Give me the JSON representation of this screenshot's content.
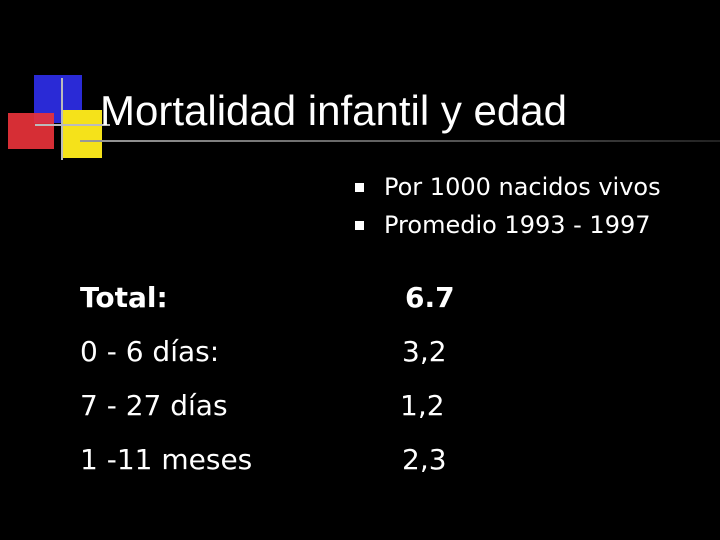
{
  "slide": {
    "title": "Mortalidad infantil y edad",
    "bullets": [
      "Por 1000 nacidos vivos",
      "Promedio 1993 - 1997"
    ],
    "rows": [
      {
        "label": "Total:",
        "value": "6.7"
      },
      {
        "label": "0 - 6 días:",
        "value": "3,2"
      },
      {
        "label": "7 - 27 días",
        "value": "1,2"
      },
      {
        "label": "1 -11 meses",
        "value": "2,3"
      }
    ]
  },
  "colors": {
    "background": "#000000",
    "text": "#ffffff",
    "logo_blue": "#2a2ad6",
    "logo_red": "#e8323a",
    "logo_yellow": "#f5e21a"
  },
  "icons": [
    "decorative-squares-logo",
    "square-bullet-icon"
  ]
}
